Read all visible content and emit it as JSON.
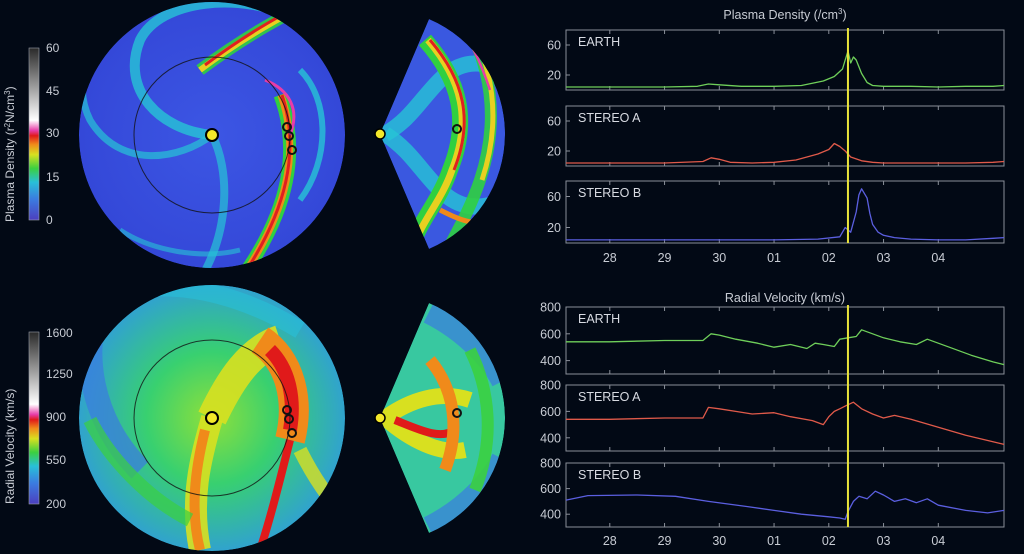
{
  "colorbars": {
    "density": {
      "label_main": "Plasma Density (r",
      "label_sup": "2",
      "label_rest": "N/cm",
      "label_sup2": "3",
      "label_end": ")",
      "ticks": [
        "60",
        "45",
        "30",
        "15",
        "0"
      ]
    },
    "velocity": {
      "label": "Radial Velocity (km/s)",
      "ticks": [
        "1600",
        "1250",
        "900",
        "550",
        "200"
      ]
    }
  },
  "colors": {
    "earth": "#6fcf5a",
    "stereo_a": "#e05a4a",
    "stereo_b": "#5b5fe0",
    "time_marker": "#e8e23a",
    "background": "#020915"
  },
  "chart_data": [
    {
      "type": "line",
      "title": "Plasma Density (/cm",
      "title_sup": "3",
      "title_end": ")",
      "x_ticks": [
        "28",
        "29",
        "30",
        "01",
        "02",
        "03",
        "04"
      ],
      "x_range": [
        27.2,
        35.2
      ],
      "marker_x": 32.35,
      "panels": [
        {
          "name": "EARTH",
          "color_key": "earth",
          "ylim": [
            0,
            80
          ],
          "y_ticks": [
            20,
            60
          ],
          "x": [
            27.2,
            28.0,
            29.0,
            29.6,
            29.8,
            30.0,
            30.4,
            31.0,
            31.5,
            31.9,
            32.1,
            32.25,
            32.3,
            32.35,
            32.4,
            32.45,
            32.5,
            32.6,
            32.7,
            32.8,
            33.0,
            33.5,
            34.0,
            34.5,
            35.0,
            35.2
          ],
          "y": [
            4,
            4,
            4,
            5,
            8,
            7,
            5,
            5,
            6,
            12,
            18,
            28,
            40,
            52,
            36,
            44,
            40,
            22,
            10,
            6,
            5,
            5,
            4,
            5,
            5,
            6
          ]
        },
        {
          "name": "STEREO A",
          "color_key": "stereo_a",
          "ylim": [
            0,
            80
          ],
          "y_ticks": [
            20,
            60
          ],
          "x": [
            27.2,
            28.0,
            29.0,
            29.7,
            29.85,
            30.0,
            30.2,
            30.6,
            31.0,
            31.4,
            31.8,
            32.0,
            32.1,
            32.2,
            32.3,
            32.4,
            32.6,
            32.8,
            33.0,
            33.5,
            34.0,
            34.5,
            35.0,
            35.2
          ],
          "y": [
            4,
            4,
            4,
            6,
            11,
            9,
            5,
            4,
            5,
            8,
            16,
            22,
            30,
            26,
            20,
            12,
            7,
            5,
            4,
            4,
            4,
            4,
            5,
            6
          ]
        },
        {
          "name": "STEREO B",
          "color_key": "stereo_b",
          "ylim": [
            0,
            80
          ],
          "y_ticks": [
            20,
            60
          ],
          "x": [
            27.2,
            28.0,
            29.0,
            30.0,
            31.0,
            31.8,
            32.2,
            32.3,
            32.4,
            32.5,
            32.55,
            32.6,
            32.7,
            32.75,
            32.8,
            32.9,
            33.0,
            33.2,
            33.5,
            34.0,
            34.5,
            35.0,
            35.2
          ],
          "y": [
            4,
            4,
            4,
            4,
            4,
            5,
            8,
            20,
            14,
            40,
            62,
            70,
            58,
            38,
            24,
            14,
            10,
            7,
            5,
            4,
            4,
            6,
            7
          ]
        }
      ]
    },
    {
      "type": "line",
      "title": "Radial Velocity (km/s)",
      "x_ticks": [
        "28",
        "29",
        "30",
        "01",
        "02",
        "03",
        "04"
      ],
      "x_range": [
        27.2,
        35.2
      ],
      "marker_x": 32.35,
      "panels": [
        {
          "name": "EARTH",
          "color_key": "earth",
          "ylim": [
            300,
            800
          ],
          "y_ticks": [
            400,
            600,
            800
          ],
          "x": [
            27.2,
            28.0,
            29.0,
            29.7,
            29.85,
            30.0,
            30.3,
            30.7,
            31.0,
            31.3,
            31.6,
            31.75,
            31.9,
            32.1,
            32.2,
            32.35,
            32.5,
            32.6,
            32.8,
            33.0,
            33.3,
            33.6,
            33.8,
            34.2,
            34.6,
            35.0,
            35.2
          ],
          "y": [
            540,
            540,
            550,
            550,
            600,
            590,
            560,
            530,
            500,
            520,
            490,
            530,
            520,
            505,
            560,
            570,
            580,
            630,
            600,
            570,
            540,
            520,
            560,
            500,
            440,
            390,
            370
          ]
        },
        {
          "name": "STEREO A",
          "color_key": "stereo_a",
          "ylim": [
            300,
            800
          ],
          "y_ticks": [
            400,
            600,
            800
          ],
          "x": [
            27.2,
            28.0,
            29.0,
            29.7,
            29.8,
            30.0,
            30.3,
            30.6,
            31.0,
            31.3,
            31.7,
            31.9,
            32.0,
            32.1,
            32.2,
            32.3,
            32.45,
            32.6,
            32.8,
            33.0,
            33.2,
            33.5,
            34.0,
            34.5,
            35.0,
            35.2
          ],
          "y": [
            540,
            540,
            550,
            550,
            630,
            620,
            600,
            580,
            590,
            560,
            530,
            500,
            560,
            600,
            620,
            640,
            670,
            620,
            580,
            550,
            570,
            540,
            480,
            420,
            370,
            350
          ]
        },
        {
          "name": "STEREO B",
          "color_key": "stereo_b",
          "ylim": [
            300,
            800
          ],
          "y_ticks": [
            400,
            600,
            800
          ],
          "x": [
            27.2,
            27.6,
            28.5,
            29.2,
            29.8,
            30.5,
            31.0,
            31.5,
            32.0,
            32.2,
            32.3,
            32.35,
            32.45,
            32.55,
            32.7,
            32.85,
            33.0,
            33.2,
            33.4,
            33.6,
            33.8,
            34.0,
            34.5,
            34.9,
            35.2
          ],
          "y": [
            510,
            545,
            550,
            540,
            500,
            460,
            430,
            400,
            380,
            370,
            360,
            420,
            500,
            540,
            520,
            580,
            550,
            500,
            520,
            490,
            520,
            470,
            430,
            410,
            430
          ]
        }
      ]
    }
  ]
}
